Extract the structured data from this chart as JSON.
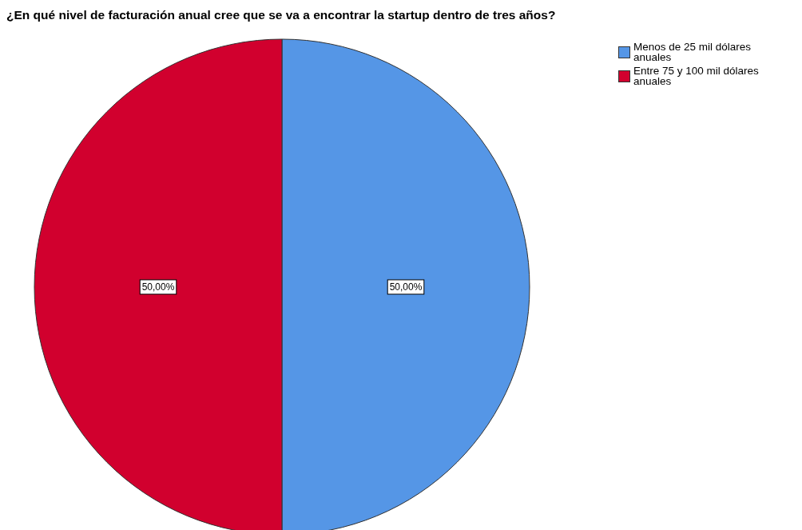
{
  "chart_data": {
    "type": "pie",
    "title": "¿En qué nivel de facturación anual cree que se va a encontrar la startup dentro de tres años?",
    "categories": [
      "Menos de 25 mil dólares anuales",
      "Entre 75 y 100 mil dólares anuales"
    ],
    "values": [
      50,
      50
    ],
    "colors": [
      "#5596e6",
      "#d1002e"
    ],
    "value_labels": [
      "50,00%",
      "50,00%"
    ],
    "legend": "top right"
  }
}
